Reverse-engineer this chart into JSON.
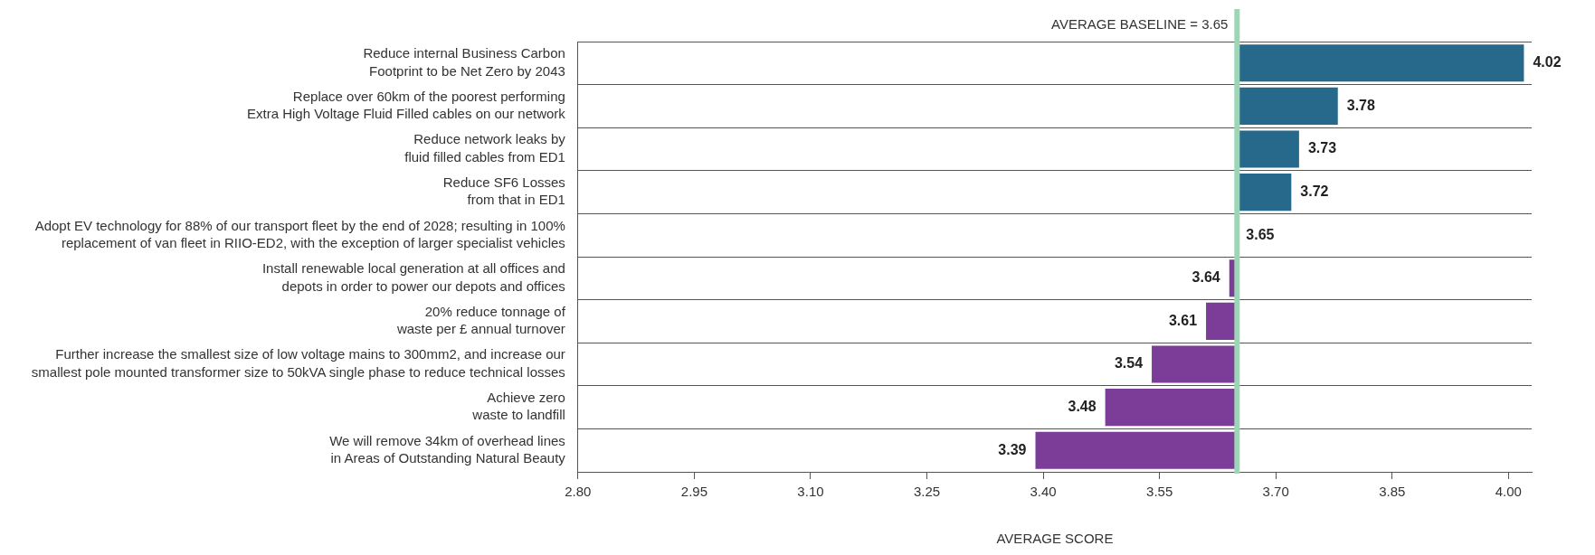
{
  "chart_data": {
    "type": "bar",
    "orientation": "horizontal",
    "xlabel": "AVERAGE SCORE",
    "categories": [
      "Reduce internal Business Carbon\nFootprint to be Net Zero by 2043",
      "Replace over 60km of the poorest performing\nExtra High Voltage Fluid Filled cables on our network",
      "Reduce network leaks by\nfluid filled cables from ED1",
      "Reduce SF6 Losses\nfrom that in ED1",
      "Adopt EV technology for 88% of our transport fleet by the end of 2028; resulting in 100%\nreplacement of van fleet in RIIO-ED2, with the exception of larger specialist vehicles",
      "Install renewable local generation at all offices and\ndepots in order to power our depots and offices",
      "20% reduce tonnage of\nwaste per £ annual turnover",
      "Further increase the smallest size of low voltage mains to 300mm2, and increase our\nsmallest pole mounted transformer size to 50kVA single phase to reduce technical losses",
      "Achieve zero\nwaste to landfill",
      "We will remove 34km of overhead lines\nin Areas of Outstanding Natural Beauty"
    ],
    "base": [
      3.65,
      3.65,
      3.65,
      3.65,
      3.65,
      3.65,
      3.65,
      3.65,
      3.65,
      3.65
    ],
    "values": [
      0.37,
      0.13,
      0.08,
      0.07,
      0,
      -0.01,
      -0.04,
      -0.11,
      -0.17,
      -0.26
    ],
    "value_labels": [
      "4.02",
      "3.78",
      "3.73",
      "3.72",
      "3.65",
      "3.64",
      "3.61",
      "3.54",
      "3.48",
      "3.39"
    ],
    "colors": [
      "#27698a",
      "#27698a",
      "#27698a",
      "#27698a",
      "#27698a",
      "#7b3d98",
      "#7b3d98",
      "#7b3d98",
      "#7b3d98",
      "#7b3d98"
    ],
    "xlim": [
      2.8,
      4.03
    ],
    "xticks": [
      {
        "value": 2.8,
        "label": "2.80"
      },
      {
        "value": 2.95,
        "label": "2.95"
      },
      {
        "value": 3.1,
        "label": "3.10"
      },
      {
        "value": 3.25,
        "label": "3.25"
      },
      {
        "value": 3.4,
        "label": "3.40"
      },
      {
        "value": 3.55,
        "label": "3.55"
      },
      {
        "value": 3.7,
        "label": "3.70"
      },
      {
        "value": 3.85,
        "label": "3.85"
      },
      {
        "value": 4.0,
        "label": "4.00"
      }
    ],
    "ref_lines": [
      {
        "axis": "x",
        "value": 3.65,
        "label": "AVERAGE BASELINE = 3.65",
        "color": "#9dd6b6"
      }
    ],
    "grid": "y",
    "legend": false
  }
}
